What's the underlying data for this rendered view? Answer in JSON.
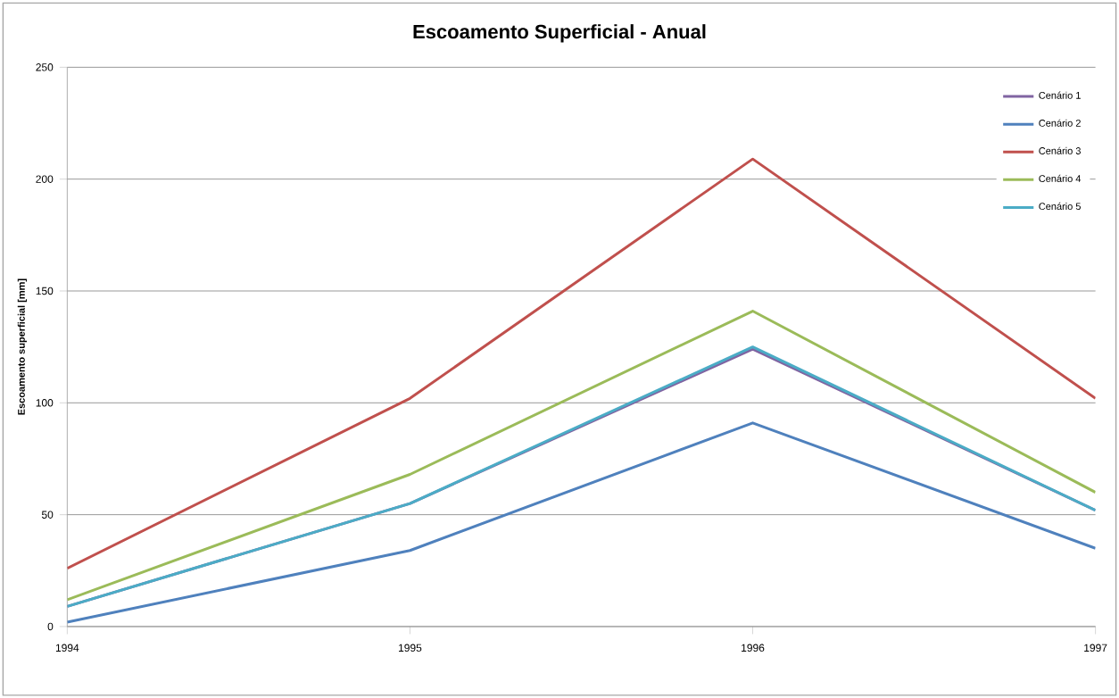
{
  "chart_data": {
    "type": "line",
    "title": "Escoamento Superficial - Anual",
    "ylabel": "Escoamento superficial [mm]",
    "x": [
      1994,
      1995,
      1996,
      1997
    ],
    "series": [
      {
        "name": "Cenário 1",
        "color": "#8064a2",
        "values": [
          9,
          55,
          124,
          52
        ]
      },
      {
        "name": "Cenário 2",
        "color": "#4f81bd",
        "values": [
          2,
          34,
          91,
          35
        ]
      },
      {
        "name": "Cenário 3",
        "color": "#c0504d",
        "values": [
          26,
          102,
          209,
          102
        ]
      },
      {
        "name": "Cenário 4",
        "color": "#9bbb59",
        "values": [
          12,
          68,
          141,
          60
        ]
      },
      {
        "name": "Cenário 5",
        "color": "#4bacc6",
        "values": [
          9,
          55,
          125,
          52
        ]
      }
    ],
    "xlim": [
      1994,
      1997
    ],
    "ylim": [
      0,
      250
    ],
    "xticks": [
      1994,
      1995,
      1996,
      1997
    ],
    "yticks": [
      0,
      50,
      100,
      150,
      200,
      250
    ],
    "grid": "y",
    "legend": "top right",
    "marker": "none",
    "line_style": "solid"
  }
}
